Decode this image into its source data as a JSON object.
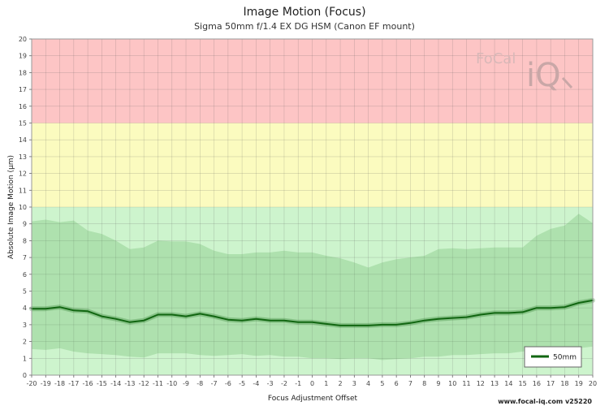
{
  "chart_data": {
    "type": "area",
    "title": "Image Motion (Focus)",
    "subtitle": "Sigma 50mm f/1.4 EX DG HSM (Canon EF mount)",
    "xlabel": "Focus Adjustment Offset",
    "ylabel": "Absolute Image Motion (µm)",
    "xlim": [
      -20,
      20
    ],
    "ylim": [
      0,
      20
    ],
    "x_ticks": [
      "-20",
      "-19",
      "-18",
      "-17",
      "-16",
      "-15",
      "-14",
      "-13",
      "-12",
      "-11",
      "-10",
      "-9",
      "-8",
      "-7",
      "-6",
      "-5",
      "-4",
      "-3",
      "-2",
      "-1",
      "0",
      "1",
      "2",
      "3",
      "4",
      "5",
      "6",
      "7",
      "8",
      "9",
      "10",
      "11",
      "12",
      "13",
      "14",
      "15",
      "16",
      "17",
      "18",
      "19",
      "20"
    ],
    "y_ticks": [
      "0",
      "1",
      "2",
      "3",
      "4",
      "5",
      "6",
      "7",
      "8",
      "9",
      "10",
      "11",
      "12",
      "13",
      "14",
      "15",
      "16",
      "17",
      "18",
      "19",
      "20"
    ],
    "grid": true,
    "legend_position": "bottom-right",
    "bands": [
      {
        "from": 0,
        "to": 10,
        "color": "#cdf4cd"
      },
      {
        "from": 10,
        "to": 15,
        "color": "#fbfbbf"
      },
      {
        "from": 15,
        "to": 20,
        "color": "#fdc5c5"
      }
    ],
    "x": [
      -20,
      -19,
      -18,
      -17,
      -16,
      -15,
      -14,
      -13,
      -12,
      -11,
      -10,
      -9,
      -8,
      -7,
      -6,
      -5,
      -4,
      -3,
      -2,
      -1,
      0,
      1,
      2,
      3,
      4,
      5,
      6,
      7,
      8,
      9,
      10,
      11,
      12,
      13,
      14,
      15,
      16,
      17,
      18,
      19,
      20
    ],
    "series": [
      {
        "name": "50mm",
        "color": "#116611",
        "values": [
          3.95,
          3.95,
          4.05,
          3.85,
          3.8,
          3.5,
          3.35,
          3.15,
          3.25,
          3.6,
          3.6,
          3.5,
          3.65,
          3.5,
          3.3,
          3.25,
          3.35,
          3.25,
          3.25,
          3.15,
          3.15,
          3.05,
          2.95,
          2.95,
          2.95,
          3.0,
          3.0,
          3.1,
          3.25,
          3.35,
          3.4,
          3.45,
          3.6,
          3.7,
          3.7,
          3.75,
          4.0,
          4.0,
          4.05,
          4.3,
          4.45
        ],
        "upper": [
          9.15,
          9.25,
          9.1,
          9.2,
          8.6,
          8.4,
          8.0,
          7.5,
          7.6,
          8.0,
          7.95,
          7.95,
          7.8,
          7.4,
          7.2,
          7.2,
          7.3,
          7.3,
          7.4,
          7.3,
          7.3,
          7.1,
          6.95,
          6.7,
          6.4,
          6.7,
          6.9,
          7.0,
          7.1,
          7.5,
          7.55,
          7.5,
          7.55,
          7.6,
          7.6,
          7.6,
          8.3,
          8.7,
          8.9,
          9.6,
          9.05
        ],
        "lower": [
          1.55,
          1.5,
          1.6,
          1.4,
          1.3,
          1.25,
          1.2,
          1.1,
          1.05,
          1.3,
          1.3,
          1.3,
          1.2,
          1.15,
          1.2,
          1.25,
          1.15,
          1.2,
          1.1,
          1.1,
          1.0,
          1.0,
          0.95,
          1.0,
          1.0,
          0.9,
          0.95,
          1.0,
          1.1,
          1.1,
          1.2,
          1.2,
          1.25,
          1.3,
          1.3,
          1.4,
          1.55,
          1.6,
          1.55,
          1.6,
          1.7
        ]
      }
    ]
  },
  "legend": {
    "label": "50mm"
  },
  "watermark": {
    "text_left": "FoCal",
    "text_right": "iQ"
  },
  "credit": "www.focal-iq.com  v25220"
}
